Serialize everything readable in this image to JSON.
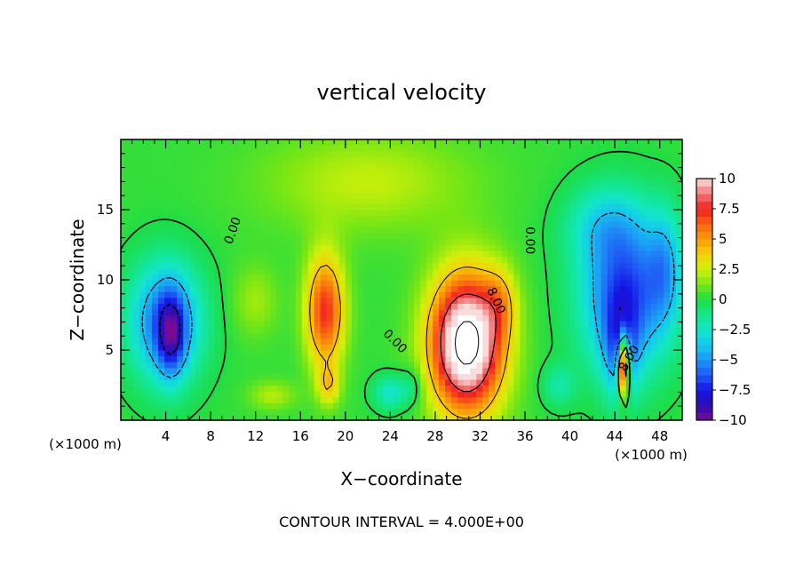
{
  "chart_data": {
    "type": "heatmap",
    "title": "vertical velocity",
    "xlabel": "X−coordinate",
    "ylabel": "Z−coordinate",
    "x_unit_left": "(×1000 m)",
    "x_unit_right": "(×1000 m)",
    "footer": "CONTOUR INTERVAL = 4.000E+00",
    "xlim": [
      0,
      50
    ],
    "ylim": [
      0,
      20
    ],
    "x_ticks": [
      4,
      8,
      12,
      16,
      20,
      24,
      28,
      32,
      36,
      40,
      44,
      48
    ],
    "y_ticks": [
      5,
      10,
      15
    ],
    "colorbar": {
      "range": [
        -10,
        10
      ],
      "tick_values": [
        10,
        7.5,
        5,
        2.5,
        0,
        -2.5,
        -5,
        -7.5,
        -10
      ],
      "tick_labels": [
        "10",
        "7.5",
        "5",
        "2.5",
        "0",
        "−2.5",
        "−5",
        "−7.5",
        "−10"
      ]
    },
    "contour_labels": [
      {
        "text": "0.00",
        "x": 10.0,
        "y": 13.5,
        "rotate": -70
      },
      {
        "text": "0.00",
        "x": 36.4,
        "y": 12.8,
        "rotate": 90
      },
      {
        "text": "0.00",
        "x": 24.4,
        "y": 5.6,
        "rotate": 45
      },
      {
        "text": "8.00",
        "x": 33.4,
        "y": 8.5,
        "rotate": 65
      },
      {
        "text": "8.00",
        "x": 45.3,
        "y": 4.4,
        "rotate": -60
      }
    ],
    "features": [
      {
        "kind": "updraft",
        "x": 30.8,
        "z": 5.5,
        "rx": 3.2,
        "rz": 4.8,
        "w": 13
      },
      {
        "kind": "updraft",
        "x": 33.8,
        "z": 8.5,
        "rx": 1.5,
        "rz": 2.5,
        "w": 2.5
      },
      {
        "kind": "updraft",
        "x": 18.2,
        "z": 7.8,
        "rx": 1.7,
        "rz": 4.0,
        "w": 7
      },
      {
        "kind": "updraft",
        "x": 18.5,
        "z": 2.5,
        "rx": 1.0,
        "rz": 1.4,
        "w": 3
      },
      {
        "kind": "updraft",
        "x": 44.8,
        "z": 4.0,
        "rx": 0.5,
        "rz": 2.2,
        "w": 12
      },
      {
        "kind": "updraft",
        "x": 22.0,
        "z": 17.0,
        "rx": 9.0,
        "rz": 3.5,
        "w": 2.0
      },
      {
        "kind": "updraft",
        "x": 12.0,
        "z": 8.5,
        "rx": 2.0,
        "rz": 2.5,
        "w": 1.5
      },
      {
        "kind": "updraft",
        "x": 13.5,
        "z": 1.8,
        "rx": 2.0,
        "rz": 1.0,
        "w": 1.8
      },
      {
        "kind": "downdraft",
        "x": 4.0,
        "z": 7.0,
        "rx": 3.2,
        "rz": 4.2,
        "w": -6.5
      },
      {
        "kind": "downdraft",
        "x": 4.5,
        "z": 6.0,
        "rx": 1.2,
        "rz": 3.0,
        "w": -4.5
      },
      {
        "kind": "downdraft",
        "x": 45.0,
        "z": 9.0,
        "rx": 4.0,
        "rz": 5.5,
        "w": -7
      },
      {
        "kind": "downdraft",
        "x": 44.5,
        "z": 5.0,
        "rx": 1.5,
        "rz": 3.5,
        "w": -4
      },
      {
        "kind": "downdraft",
        "x": 43.0,
        "z": 14.0,
        "rx": 3.5,
        "rz": 2.8,
        "w": -2.5
      },
      {
        "kind": "downdraft",
        "x": 48.5,
        "z": 11.0,
        "rx": 1.5,
        "rz": 4.0,
        "w": -3
      },
      {
        "kind": "downdraft",
        "x": 24.0,
        "z": 2.0,
        "rx": 1.5,
        "rz": 1.2,
        "w": -3
      },
      {
        "kind": "downdraft",
        "x": 39.0,
        "z": 2.5,
        "rx": 1.5,
        "rz": 1.5,
        "w": -2
      },
      {
        "kind": "downdraft",
        "x": 26.0,
        "z": 2.5,
        "rx": 1.0,
        "rz": 1.5,
        "w": -1.5
      }
    ]
  }
}
